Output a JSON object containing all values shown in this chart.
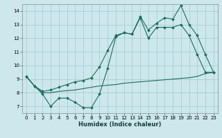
{
  "title": "",
  "xlabel": "Humidex (Indice chaleur)",
  "bg_color": "#cce8ec",
  "grid_color": "#aacdd4",
  "line_color": "#1a6b5a",
  "xlim": [
    -0.5,
    23.5
  ],
  "ylim": [
    6.5,
    14.5
  ],
  "xticks": [
    0,
    1,
    2,
    3,
    4,
    5,
    6,
    7,
    8,
    9,
    10,
    11,
    12,
    13,
    14,
    15,
    16,
    17,
    18,
    19,
    20,
    21,
    22,
    23
  ],
  "yticks": [
    7,
    8,
    9,
    10,
    11,
    12,
    13,
    14
  ],
  "line1_x": [
    0,
    1,
    2,
    3,
    4,
    5,
    6,
    7,
    8,
    9,
    10,
    11,
    12,
    13,
    14,
    15,
    16,
    17,
    18,
    19,
    20,
    21,
    22,
    23
  ],
  "line1_y": [
    9.2,
    8.5,
    7.9,
    7.0,
    7.6,
    7.6,
    7.3,
    6.9,
    6.9,
    7.9,
    9.8,
    12.1,
    12.4,
    12.3,
    13.5,
    12.0,
    12.8,
    12.8,
    12.8,
    13.0,
    12.2,
    10.8,
    9.5,
    9.5
  ],
  "line2_x": [
    0,
    1,
    2,
    3,
    4,
    5,
    6,
    7,
    8,
    9,
    10,
    11,
    12,
    13,
    14,
    15,
    16,
    17,
    18,
    19,
    20,
    21,
    22,
    23
  ],
  "line2_y": [
    9.2,
    8.5,
    8.1,
    8.2,
    8.4,
    8.6,
    8.8,
    8.9,
    9.1,
    9.9,
    11.1,
    12.2,
    12.4,
    12.3,
    13.6,
    12.6,
    13.1,
    13.5,
    13.4,
    14.4,
    13.0,
    12.2,
    10.8,
    9.5
  ],
  "line3_x": [
    0,
    1,
    2,
    3,
    4,
    5,
    6,
    7,
    8,
    9,
    10,
    11,
    12,
    13,
    14,
    15,
    16,
    17,
    18,
    19,
    20,
    21,
    22,
    23
  ],
  "line3_y": [
    9.2,
    8.5,
    8.0,
    8.0,
    8.1,
    8.15,
    8.2,
    8.3,
    8.4,
    8.5,
    8.55,
    8.6,
    8.7,
    8.75,
    8.8,
    8.85,
    8.9,
    8.95,
    9.0,
    9.05,
    9.1,
    9.2,
    9.4,
    9.5
  ],
  "xlabel_fontsize": 6,
  "tick_fontsize": 5,
  "lw": 0.8,
  "ms": 2.0
}
